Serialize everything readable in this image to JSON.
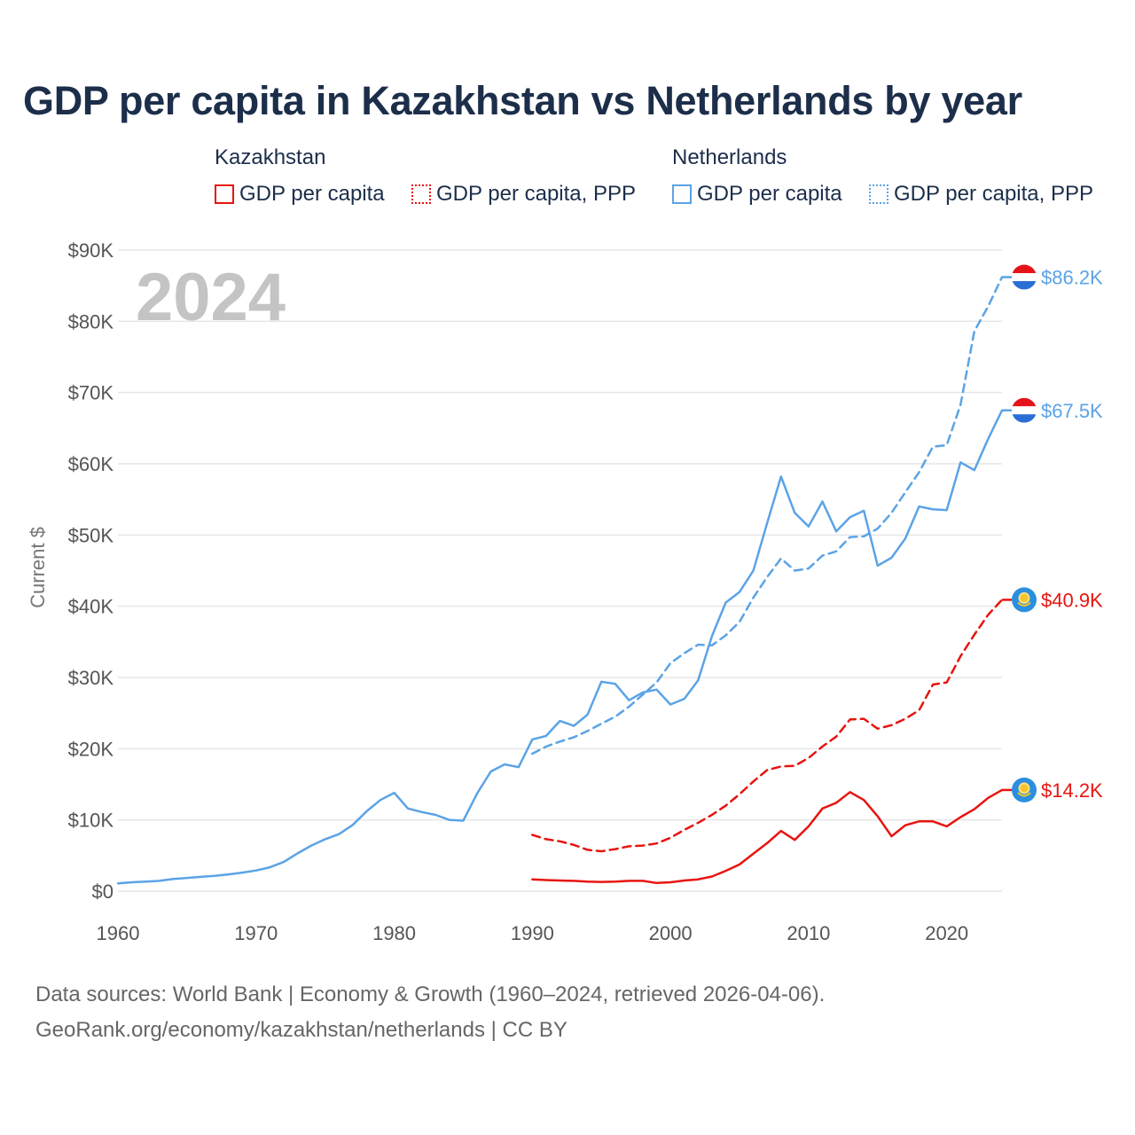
{
  "colors": {
    "kazakhstan": "#e8140f",
    "netherlands": "#5ba3e6",
    "title": "#1c2e4a",
    "grid": "#e6e6e6",
    "axis_text": "#555555",
    "year_stamp": "#c4c4c4"
  },
  "title": "GDP per capita in Kazakhstan vs Netherlands by year",
  "legend": {
    "kazakhstan": {
      "label": "Kazakhstan",
      "gdp": "GDP per capita",
      "ppp": "GDP per capita, PPP"
    },
    "netherlands": {
      "label": "Netherlands",
      "gdp": "GDP per capita",
      "ppp": "GDP per capita, PPP"
    }
  },
  "chart_data": {
    "type": "line",
    "title": "GDP per capita in Kazakhstan vs Netherlands by year",
    "xlabel": "",
    "ylabel": "Current $",
    "xlim": [
      1960,
      2024
    ],
    "ylim": [
      0,
      90000
    ],
    "year_stamp": "2024",
    "x_ticks": [
      1960,
      1970,
      1980,
      1990,
      2000,
      2010,
      2020
    ],
    "x_tick_labels": [
      "1960",
      "1970",
      "1980",
      "1990",
      "2000",
      "2010",
      "2020"
    ],
    "y_ticks": [
      0,
      10000,
      20000,
      30000,
      40000,
      50000,
      60000,
      70000,
      80000,
      90000
    ],
    "y_tick_labels": [
      "$0",
      "$10K",
      "$20K",
      "$30K",
      "$40K",
      "$50K",
      "$60K",
      "$70K",
      "$80K",
      "$90K"
    ],
    "series": [
      {
        "name": "Netherlands GDP per capita",
        "country": "netherlands",
        "style": "solid",
        "end_label": "$67.5K",
        "x": [
          1960,
          1961,
          1962,
          1963,
          1964,
          1965,
          1966,
          1967,
          1968,
          1969,
          1970,
          1971,
          1972,
          1973,
          1974,
          1975,
          1976,
          1977,
          1978,
          1979,
          1980,
          1981,
          1982,
          1983,
          1984,
          1985,
          1986,
          1987,
          1988,
          1989,
          1990,
          1991,
          1992,
          1993,
          1994,
          1995,
          1996,
          1997,
          1998,
          1999,
          2000,
          2001,
          2002,
          2003,
          2004,
          2005,
          2006,
          2007,
          2008,
          2009,
          2010,
          2011,
          2012,
          2013,
          2014,
          2015,
          2016,
          2017,
          2018,
          2019,
          2020,
          2021,
          2022,
          2023,
          2024
        ],
        "values": [
          1100,
          1250,
          1350,
          1450,
          1700,
          1850,
          2000,
          2150,
          2350,
          2600,
          2900,
          3350,
          4100,
          5300,
          6400,
          7300,
          8000,
          9300,
          11200,
          12800,
          13800,
          11600,
          11100,
          10700,
          10000,
          9900,
          13700,
          16800,
          17800,
          17400,
          21300,
          21800,
          23900,
          23200,
          24800,
          29400,
          29100,
          26800,
          27900,
          28300,
          26200,
          27000,
          29600,
          35800,
          40500,
          42000,
          45000,
          51700,
          58200,
          53100,
          51200,
          54700,
          50500,
          52500,
          53400,
          45700,
          46800,
          49500,
          54000,
          53600,
          53500,
          60200,
          59100,
          63500,
          67500
        ]
      },
      {
        "name": "Netherlands GDP per capita, PPP",
        "country": "netherlands",
        "style": "dashed",
        "end_label": "$86.2K",
        "x": [
          1990,
          1991,
          1992,
          1993,
          1994,
          1995,
          1996,
          1997,
          1998,
          1999,
          2000,
          2001,
          2002,
          2003,
          2004,
          2005,
          2006,
          2007,
          2008,
          2009,
          2010,
          2011,
          2012,
          2013,
          2014,
          2015,
          2016,
          2017,
          2018,
          2019,
          2020,
          2021,
          2022,
          2023,
          2024
        ],
        "values": [
          19300,
          20300,
          21000,
          21600,
          22500,
          23500,
          24500,
          25900,
          27600,
          29300,
          32000,
          33400,
          34600,
          34500,
          35900,
          37800,
          41200,
          44100,
          46700,
          45000,
          45300,
          47100,
          47700,
          49700,
          49800,
          50900,
          53100,
          56000,
          58800,
          62400,
          62600,
          68300,
          78600,
          82100,
          86200
        ]
      },
      {
        "name": "Kazakhstan GDP per capita",
        "country": "kazakhstan",
        "style": "solid",
        "end_label": "$14.2K",
        "x": [
          1990,
          1991,
          1992,
          1993,
          1994,
          1995,
          1996,
          1997,
          1998,
          1999,
          2000,
          2001,
          2002,
          2003,
          2004,
          2005,
          2006,
          2007,
          2008,
          2009,
          2010,
          2011,
          2012,
          2013,
          2014,
          2015,
          2016,
          2017,
          2018,
          2019,
          2020,
          2021,
          2022,
          2023,
          2024
        ],
        "values": [
          1650,
          1550,
          1500,
          1450,
          1350,
          1300,
          1350,
          1450,
          1450,
          1150,
          1250,
          1500,
          1650,
          2050,
          2850,
          3750,
          5250,
          6750,
          8450,
          7200,
          9100,
          11600,
          12400,
          13900,
          12800,
          10500,
          7700,
          9250,
          9800,
          9800,
          9100,
          10400,
          11500,
          13100,
          14200
        ]
      },
      {
        "name": "Kazakhstan GDP per capita, PPP",
        "country": "kazakhstan",
        "style": "dashed",
        "end_label": "$40.9K",
        "x": [
          1990,
          1991,
          1992,
          1993,
          1994,
          1995,
          1996,
          1997,
          1998,
          1999,
          2000,
          2001,
          2002,
          2003,
          2004,
          2005,
          2006,
          2007,
          2008,
          2009,
          2010,
          2011,
          2012,
          2013,
          2014,
          2015,
          2016,
          2017,
          2018,
          2019,
          2020,
          2021,
          2022,
          2023,
          2024
        ],
        "values": [
          7900,
          7300,
          7000,
          6500,
          5800,
          5600,
          5900,
          6300,
          6400,
          6700,
          7500,
          8600,
          9600,
          10700,
          12000,
          13600,
          15400,
          17000,
          17500,
          17600,
          18700,
          20300,
          21700,
          24100,
          24200,
          22800,
          23300,
          24200,
          25400,
          29000,
          29300,
          33000,
          36000,
          38800,
          40900
        ]
      }
    ]
  },
  "footer": {
    "line1": "Data sources: World Bank | Economy & Growth (1960–2024, retrieved 2026-04-06).",
    "line2": "GeoRank.org/economy/kazakhstan/netherlands | CC BY"
  }
}
